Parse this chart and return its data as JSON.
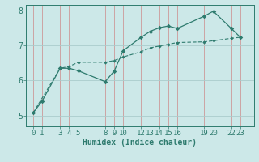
{
  "xlabel": "Humidex (Indice chaleur)",
  "background_color": "#cce8e8",
  "line_color": "#2e7b6e",
  "grid_color_v": "#cc9999",
  "grid_color_h": "#aacccc",
  "x_line1": [
    0,
    1,
    3,
    4,
    5,
    8,
    9,
    10,
    12,
    13,
    14,
    15,
    16,
    19,
    20,
    22,
    23
  ],
  "y_line1": [
    5.08,
    5.42,
    6.35,
    6.35,
    6.28,
    5.97,
    6.27,
    6.85,
    7.23,
    7.4,
    7.5,
    7.55,
    7.48,
    7.83,
    7.97,
    7.48,
    7.23
  ],
  "x_line2": [
    0,
    3,
    4,
    5,
    8,
    9,
    10,
    12,
    13,
    14,
    15,
    16,
    19,
    20,
    22,
    23
  ],
  "y_line2": [
    5.08,
    6.35,
    6.4,
    6.52,
    6.52,
    6.57,
    6.67,
    6.82,
    6.93,
    6.98,
    7.03,
    7.08,
    7.1,
    7.13,
    7.2,
    7.23
  ],
  "xlim": [
    -0.8,
    24.5
  ],
  "ylim": [
    4.7,
    8.15
  ],
  "xticks": [
    0,
    1,
    3,
    4,
    5,
    8,
    9,
    10,
    12,
    13,
    14,
    15,
    16,
    19,
    20,
    22,
    23
  ],
  "yticks": [
    5,
    6,
    7,
    8
  ],
  "xlabel_fontsize": 7,
  "tick_fontsize": 6.5
}
